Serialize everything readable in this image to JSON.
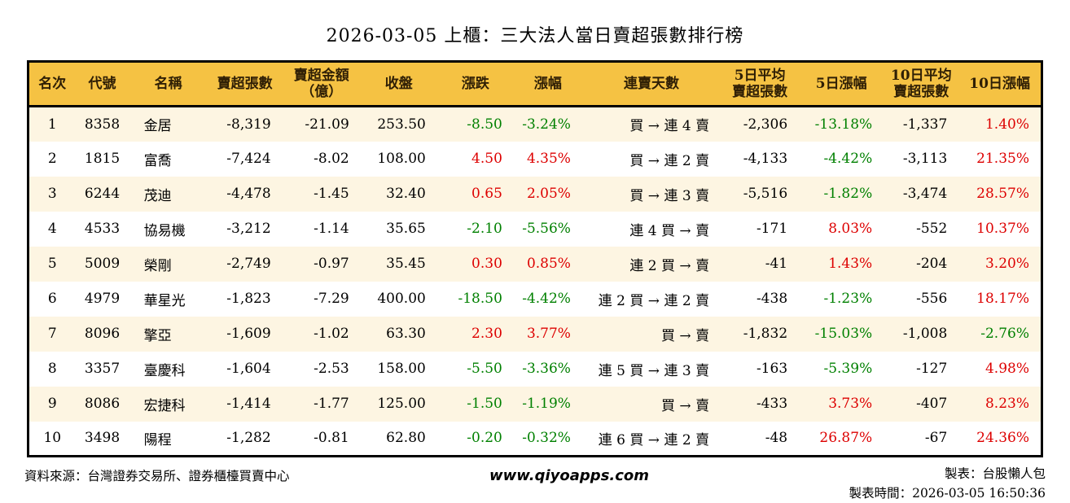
{
  "title": "2026-03-05 上櫃：三大法人當日賣超張數排行榜",
  "chart_data": {
    "type": "table",
    "columns": [
      "名次",
      "代號",
      "名稱",
      "賣超張數",
      "賣超金額\n（億）",
      "收盤",
      "漲跌",
      "漲幅",
      "連賣天數",
      "5日平均\n賣超張數",
      "5日漲幅",
      "10日平均\n賣超張數",
      "10日漲幅"
    ],
    "rows": [
      [
        "1",
        "8358",
        "金居",
        "-8,319",
        "-21.09",
        "253.50",
        "-8.50",
        "-3.24%",
        "買 → 連 4 賣",
        "-2,306",
        "-13.18%",
        "-1,337",
        "1.40%"
      ],
      [
        "2",
        "1815",
        "富喬",
        "-7,424",
        "-8.02",
        "108.00",
        "4.50",
        "4.35%",
        "買 → 連 2 賣",
        "-4,133",
        "-4.42%",
        "-3,113",
        "21.35%"
      ],
      [
        "3",
        "6244",
        "茂迪",
        "-4,478",
        "-1.45",
        "32.40",
        "0.65",
        "2.05%",
        "買 → 連 3 賣",
        "-5,516",
        "-1.82%",
        "-3,474",
        "28.57%"
      ],
      [
        "4",
        "4533",
        "協易機",
        "-3,212",
        "-1.14",
        "35.65",
        "-2.10",
        "-5.56%",
        "連 4 買 → 賣",
        "-171",
        "8.03%",
        "-552",
        "10.37%"
      ],
      [
        "5",
        "5009",
        "榮剛",
        "-2,749",
        "-0.97",
        "35.45",
        "0.30",
        "0.85%",
        "連 2 買 → 賣",
        "-41",
        "1.43%",
        "-204",
        "3.20%"
      ],
      [
        "6",
        "4979",
        "華星光",
        "-1,823",
        "-7.29",
        "400.00",
        "-18.50",
        "-4.42%",
        "連 2 買 → 連 2 賣",
        "-438",
        "-1.23%",
        "-556",
        "18.17%"
      ],
      [
        "7",
        "8096",
        "擎亞",
        "-1,609",
        "-1.02",
        "63.30",
        "2.30",
        "3.77%",
        "買 → 賣",
        "-1,832",
        "-15.03%",
        "-1,008",
        "-2.76%"
      ],
      [
        "8",
        "3357",
        "臺慶科",
        "-1,604",
        "-2.53",
        "158.00",
        "-5.50",
        "-3.36%",
        "連 5 買 → 連 3 賣",
        "-163",
        "-5.39%",
        "-127",
        "4.98%"
      ],
      [
        "9",
        "8086",
        "宏捷科",
        "-1,414",
        "-1.77",
        "125.00",
        "-1.50",
        "-1.19%",
        "買 → 賣",
        "-433",
        "3.73%",
        "-407",
        "8.23%"
      ],
      [
        "10",
        "3498",
        "陽程",
        "-1,282",
        "-0.81",
        "62.80",
        "-0.20",
        "-0.32%",
        "連 6 買 → 連 2 賣",
        "-48",
        "26.87%",
        "-67",
        "24.36%"
      ]
    ]
  },
  "footer": {
    "source": "資料來源：台灣證券交易所、證券櫃檯買賣中心",
    "website": "www.qiyoapps.com",
    "maker": "製表：台股懶人包",
    "time": "製表時間：2026-03-05 16:50:36"
  },
  "colors": {
    "header_bg": "#f5c243",
    "row_alt_bg": "#fdf5e2",
    "up_red": "#dd0000",
    "down_green": "#008000",
    "border": "#000000"
  }
}
